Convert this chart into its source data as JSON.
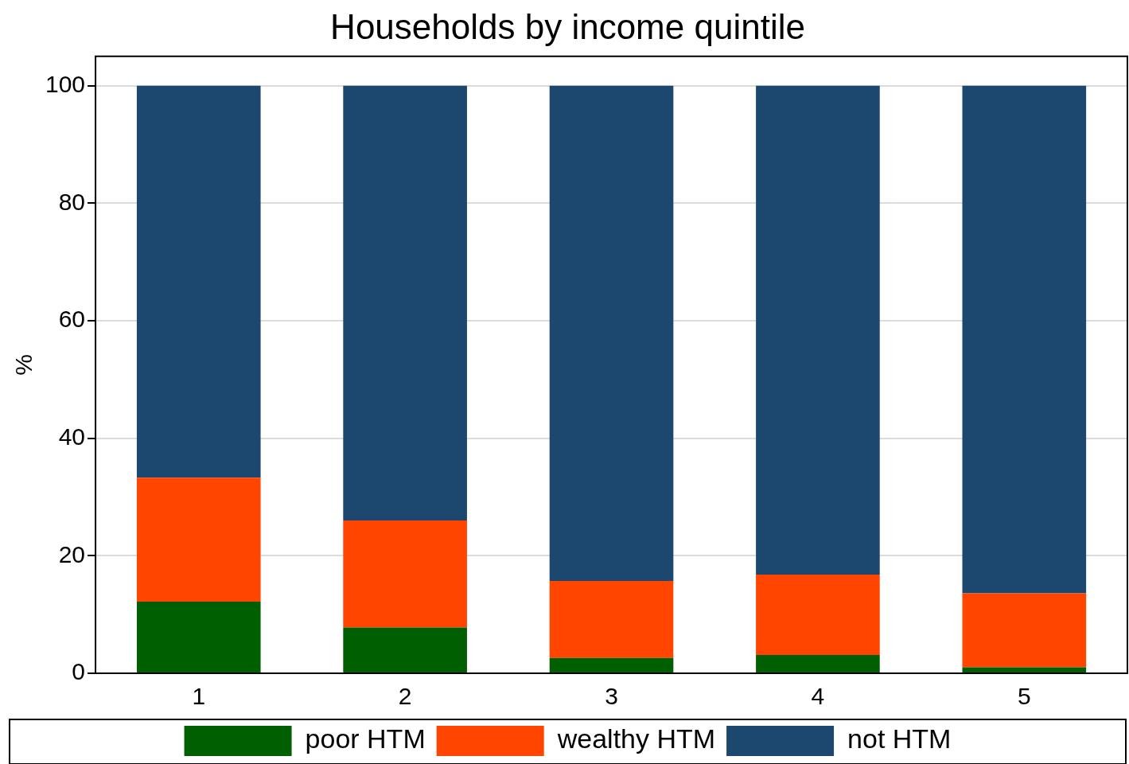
{
  "chart_data": {
    "type": "bar",
    "title": "Households by income quintile",
    "ylabel": "%",
    "categories": [
      "1",
      "2",
      "3",
      "4",
      "5"
    ],
    "stacked": true,
    "series": [
      {
        "name": "poor HTM",
        "color": "#005f00",
        "values": [
          12.2,
          7.8,
          2.6,
          3.1,
          1.0
        ]
      },
      {
        "name": "wealthy HTM",
        "color": "#ff4500",
        "values": [
          21.1,
          18.2,
          13.1,
          13.7,
          12.6
        ]
      },
      {
        "name": "not HTM",
        "color": "#1c4870",
        "values": [
          66.7,
          74.0,
          84.3,
          83.2,
          86.4
        ]
      }
    ],
    "ylim": [
      0,
      105
    ],
    "yticks": [
      0,
      20,
      40,
      60,
      80,
      100
    ],
    "grid": "y",
    "legend": "bottom"
  }
}
